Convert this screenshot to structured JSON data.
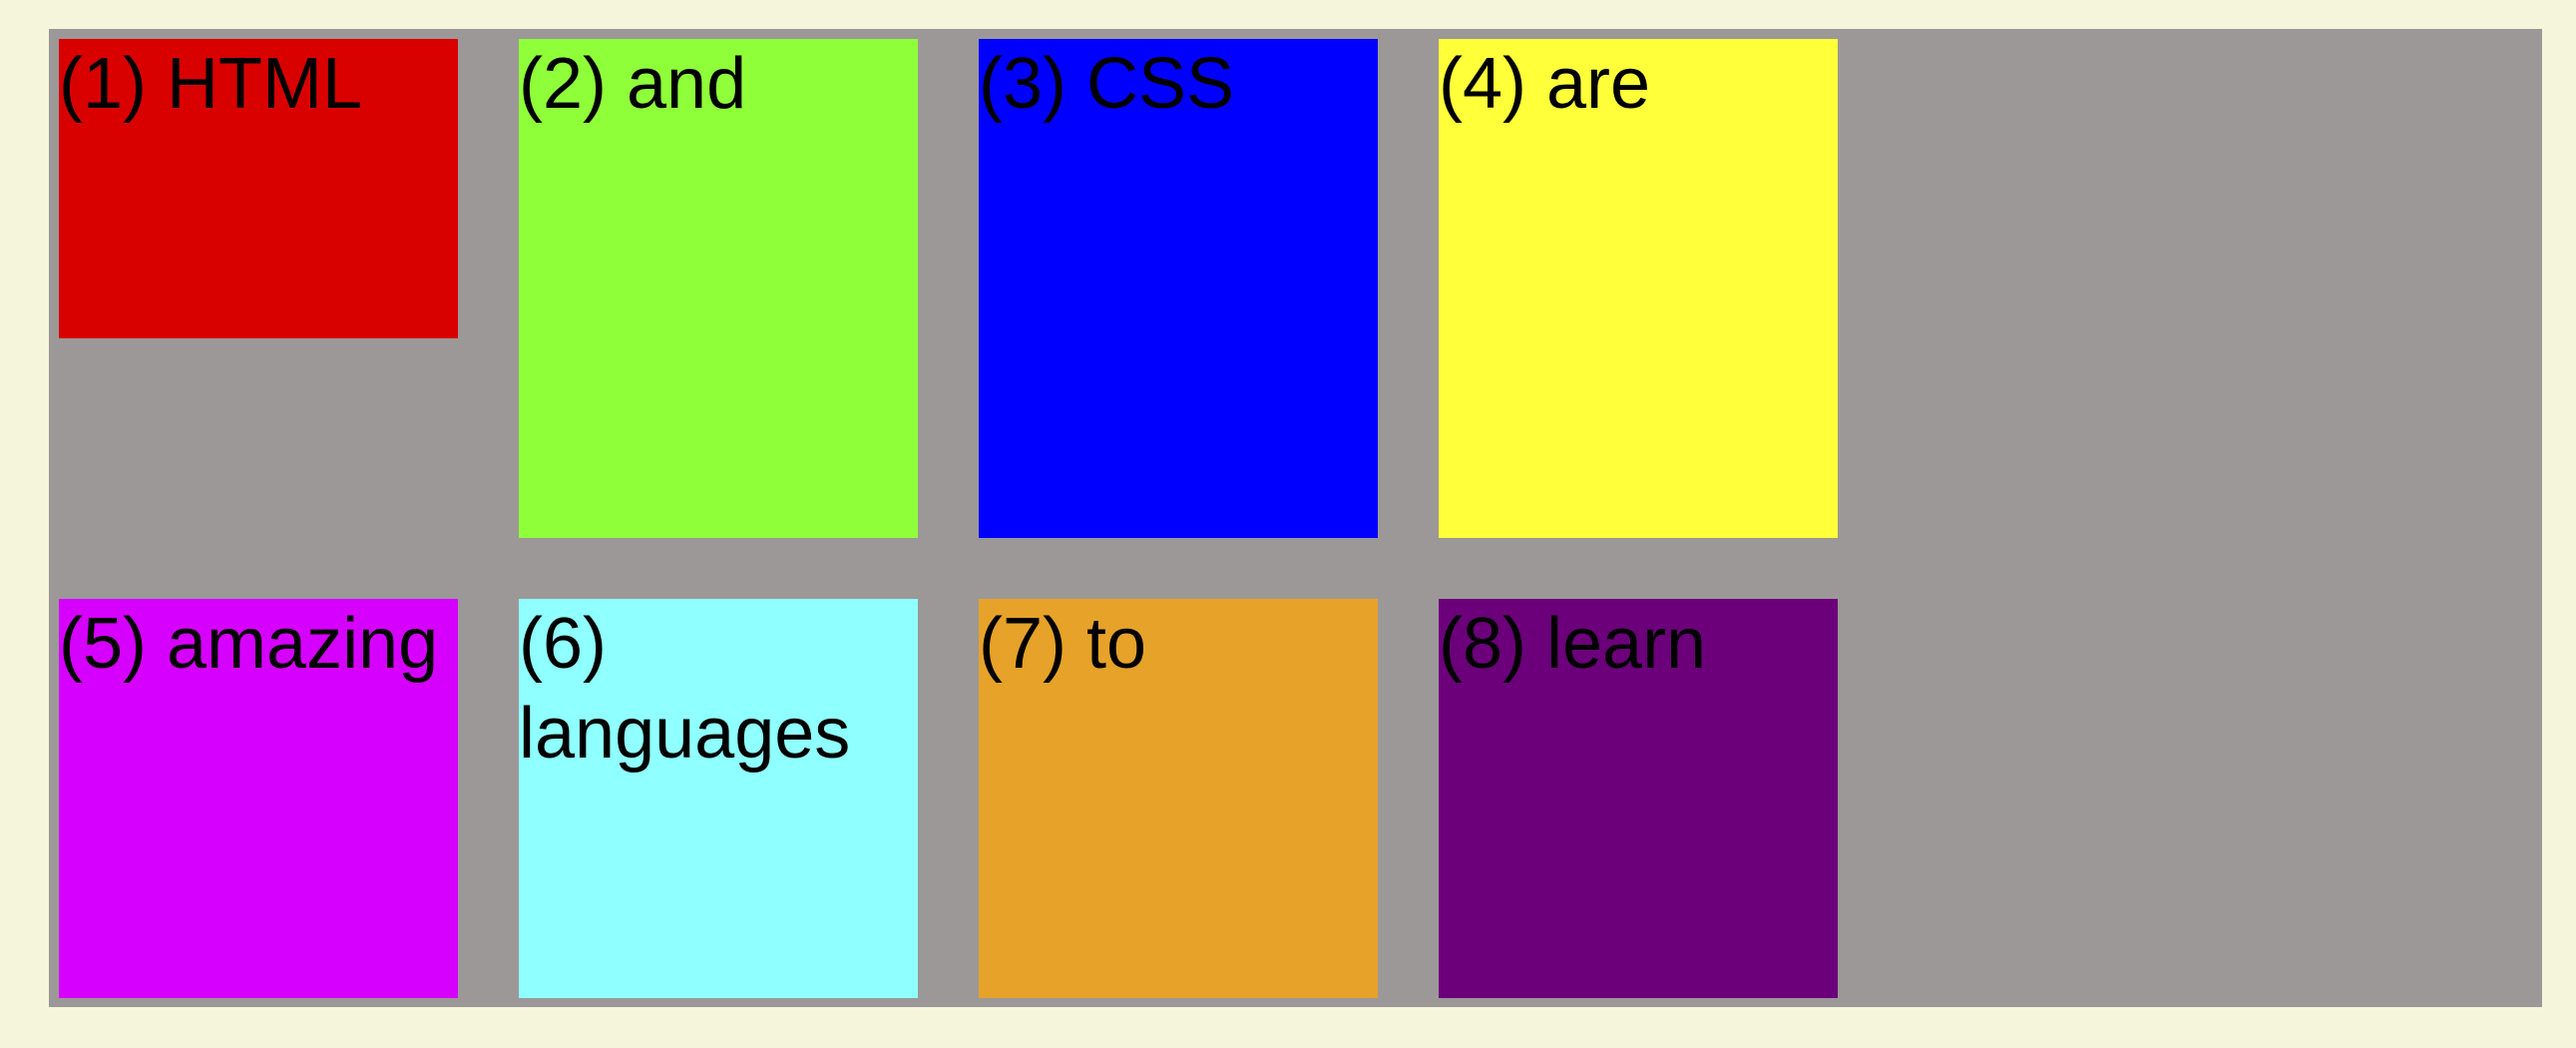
{
  "boxes": [
    {
      "label": "(1) HTML",
      "color": "#d90000"
    },
    {
      "label": "(2) and",
      "color": "#8fff3a"
    },
    {
      "label": "(3) CSS",
      "color": "#0000ff"
    },
    {
      "label": "(4) are",
      "color": "#ffff3a"
    },
    {
      "label": "(5) amazing",
      "color": "#d600ff"
    },
    {
      "label": "(6) languages",
      "color": "#8fffff"
    },
    {
      "label": "(7) to",
      "color": "#e6a229"
    },
    {
      "label": "(8) learn",
      "color": "#6b007a"
    }
  ],
  "container_color": "#9c9897",
  "page_background": "#f5f5dc"
}
